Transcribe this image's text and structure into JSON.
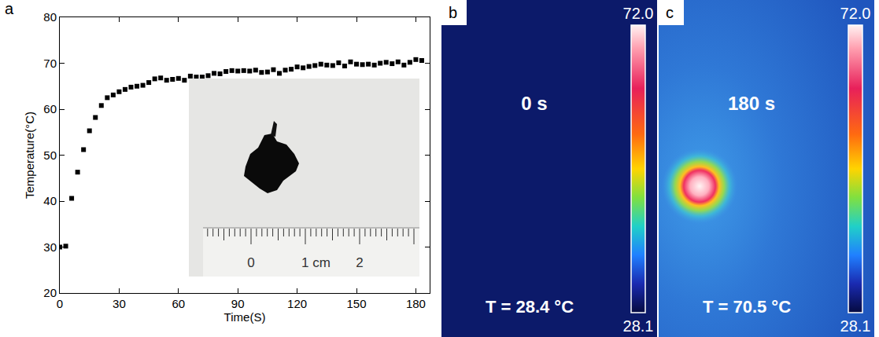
{
  "chart_data": {
    "type": "scatter",
    "panel": "a",
    "x_label": "Time(S)",
    "y_label": "Temperature(°C)",
    "x": [
      0,
      3,
      6,
      9,
      12,
      15,
      18,
      21,
      24,
      27,
      30,
      33,
      36,
      39,
      42,
      45,
      48,
      51,
      54,
      57,
      60,
      63,
      66,
      69,
      72,
      75,
      78,
      81,
      84,
      87,
      90,
      93,
      96,
      99,
      102,
      105,
      108,
      111,
      114,
      117,
      120,
      123,
      126,
      129,
      132,
      135,
      138,
      141,
      144,
      147,
      150,
      153,
      156,
      159,
      162,
      165,
      168,
      171,
      174,
      177,
      180,
      183
    ],
    "values": [
      30.0,
      30.2,
      40.6,
      46.3,
      51.2,
      55.3,
      58.2,
      60.8,
      62.5,
      63.1,
      63.8,
      64.3,
      64.8,
      65.0,
      65.2,
      65.8,
      66.6,
      66.8,
      66.3,
      66.5,
      66.7,
      66.3,
      67.2,
      67.0,
      67.0,
      67.3,
      67.8,
      67.7,
      68.2,
      68.4,
      68.3,
      68.4,
      68.3,
      68.5,
      68.0,
      68.1,
      68.6,
      67.8,
      68.5,
      68.7,
      69.2,
      69.0,
      69.3,
      69.5,
      69.8,
      69.6,
      69.5,
      70.1,
      69.4,
      70.3,
      69.8,
      69.7,
      69.8,
      69.6,
      70.0,
      70.2,
      69.9,
      70.3,
      69.6,
      70.2,
      70.8,
      70.6
    ],
    "color": "#000000",
    "marker": "square",
    "xlim": [
      0,
      187
    ],
    "xticks": [
      0,
      30,
      60,
      90,
      120,
      150,
      180
    ],
    "ylim": [
      20,
      80
    ],
    "yticks": [
      20,
      30,
      40,
      50,
      60,
      70,
      80
    ],
    "grid": false,
    "inset_labels": [
      "0",
      "1 cm",
      "2"
    ]
  },
  "thermal_images": [
    {
      "panel": "b",
      "time": "0 s",
      "temperature": "T = 28.4 °C",
      "colorbar_ticks": [
        {
          "value": 72.0,
          "label": "72.0"
        },
        {
          "value": 28.1,
          "label": "28.1"
        }
      ]
    },
    {
      "panel": "c",
      "time": "180 s",
      "temperature": "T = 70.5 °C",
      "colorbar_ticks": [
        {
          "value": 72.0,
          "label": "72.0"
        },
        {
          "value": 28.1,
          "label": "28.1"
        }
      ]
    }
  ]
}
